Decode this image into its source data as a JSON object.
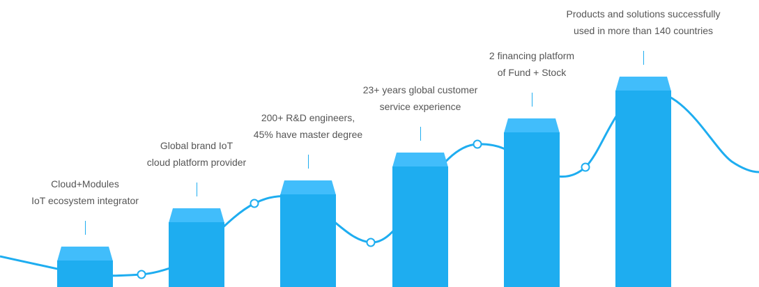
{
  "colors": {
    "bar_front": "#1eadf0",
    "bar_top": "#41bdfb",
    "curve": "#1eadf0",
    "text": "#555555",
    "node_fill": "#ffffff"
  },
  "milestones": [
    {
      "line1": "Cloud+Modules",
      "line2": "IoT ecosystem integrator"
    },
    {
      "line1": "Global brand IoT",
      "line2": "cloud platform provider"
    },
    {
      "line1": "200+ R&D engineers,",
      "line2": "45% have master degree"
    },
    {
      "line1": "23+ years global customer",
      "line2": "service experience"
    },
    {
      "line1": "2 financing platform",
      "line2": "of Fund + Stock"
    },
    {
      "line1": "Products and solutions successfully",
      "line2": "used in more than 140 countries"
    }
  ]
}
